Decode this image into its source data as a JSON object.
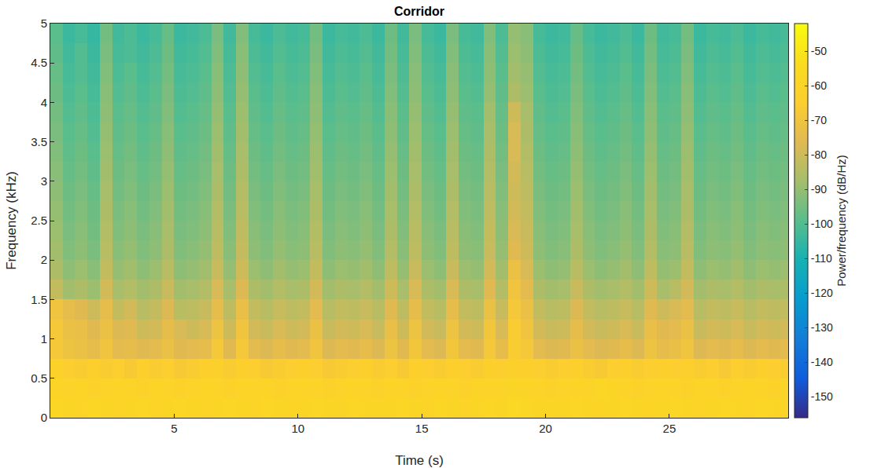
{
  "chart_data": {
    "type": "heatmap",
    "title": "Corridor",
    "x_label": "Time (s)",
    "y_label": "Frequency (kHz)",
    "xlim": [
      0,
      29.8
    ],
    "ylim": [
      0,
      5
    ],
    "xticks": [
      5,
      10,
      15,
      20,
      25
    ],
    "yticks": [
      0,
      0.5,
      1,
      1.5,
      2,
      2.5,
      3,
      3.5,
      4,
      4.5,
      5
    ],
    "colorbar": {
      "title": "Power/frequency (dB/Hz)",
      "range": [
        -156,
        -42
      ],
      "ticks": [
        -50,
        -60,
        -70,
        -80,
        -90,
        -100,
        -110,
        -120,
        -130,
        -140,
        -150
      ]
    },
    "x": [
      0.25,
      0.75,
      1.25,
      1.75,
      2.25,
      2.75,
      3.25,
      3.75,
      4.25,
      4.75,
      5.25,
      5.75,
      6.25,
      6.75,
      7.25,
      7.75,
      8.25,
      8.75,
      9.25,
      9.75,
      10.25,
      10.75,
      11.25,
      11.75,
      12.25,
      12.75,
      13.25,
      13.75,
      14.25,
      14.75,
      15.25,
      15.75,
      16.25,
      16.75,
      17.25,
      17.75,
      18.25,
      18.75,
      19.25,
      19.75,
      20.25,
      20.75,
      21.25,
      21.75,
      22.25,
      22.75,
      23.25,
      23.75,
      24.25,
      24.75,
      25.25,
      25.75,
      26.25,
      26.75,
      27.25,
      27.75,
      28.25,
      28.75,
      29.25,
      29.75
    ],
    "y": [
      0.125,
      0.375,
      0.625,
      0.875,
      1.125,
      1.375,
      1.625,
      1.875,
      2.125,
      2.375,
      2.625,
      2.875,
      3.125,
      3.375,
      3.625,
      3.875,
      4.125,
      4.375,
      4.625,
      4.875
    ],
    "z": [
      [
        -58,
        -59,
        -60,
        -58,
        -59,
        -60,
        -59,
        -58,
        -60,
        -59,
        -58,
        -59,
        -60,
        -59,
        -58,
        -59,
        -60,
        -58,
        -59,
        -60,
        -59,
        -58,
        -59,
        -60,
        -58,
        -59,
        -60,
        -59,
        -58,
        -59,
        -60,
        -58,
        -59,
        -60,
        -59,
        -58,
        -59,
        -57,
        -58,
        -59,
        -60,
        -59,
        -58,
        -59,
        -60,
        -59,
        -58,
        -59,
        -60,
        -59,
        -58,
        -59,
        -60,
        -59,
        -58,
        -59,
        -60,
        -58,
        -59,
        -60
      ],
      [
        -60,
        -61,
        -60,
        -62,
        -61,
        -60,
        -61,
        -62,
        -60,
        -61,
        -62,
        -61,
        -60,
        -61,
        -62,
        -60,
        -61,
        -60,
        -62,
        -61,
        -60,
        -61,
        -62,
        -61,
        -60,
        -61,
        -62,
        -60,
        -61,
        -62,
        -61,
        -60,
        -61,
        -62,
        -60,
        -61,
        -60,
        -59,
        -60,
        -61,
        -62,
        -61,
        -60,
        -61,
        -58,
        -60,
        -61,
        -62,
        -61,
        -60,
        -61,
        -62,
        -60,
        -61,
        -62,
        -61,
        -60,
        -61,
        -62,
        -61
      ],
      [
        -62,
        -65,
        -66,
        -64,
        -66,
        -65,
        -67,
        -64,
        -66,
        -65,
        -67,
        -66,
        -64,
        -63,
        -66,
        -64,
        -65,
        -67,
        -66,
        -65,
        -64,
        -65,
        -67,
        -66,
        -65,
        -64,
        -66,
        -65,
        -67,
        -64,
        -65,
        -66,
        -64,
        -65,
        -66,
        -63,
        -65,
        -63,
        -64,
        -65,
        -66,
        -65,
        -64,
        -66,
        -67,
        -65,
        -64,
        -66,
        -65,
        -64,
        -65,
        -64,
        -66,
        -65,
        -67,
        -65,
        -66,
        -64,
        -65,
        -66
      ],
      [
        -68,
        -71,
        -72,
        -74,
        -70,
        -75,
        -74,
        -76,
        -75,
        -72,
        -76,
        -75,
        -74,
        -68,
        -76,
        -68,
        -75,
        -77,
        -74,
        -76,
        -75,
        -70,
        -77,
        -75,
        -76,
        -74,
        -77,
        -71,
        -76,
        -69,
        -75,
        -77,
        -69,
        -75,
        -76,
        -68,
        -74,
        -66,
        -68,
        -75,
        -77,
        -76,
        -72,
        -75,
        -77,
        -76,
        -74,
        -77,
        -71,
        -74,
        -73,
        -70,
        -77,
        -75,
        -76,
        -74,
        -77,
        -75,
        -76,
        -75
      ],
      [
        -68,
        -72,
        -73,
        -76,
        -72,
        -77,
        -76,
        -80,
        -79,
        -74,
        -78,
        -80,
        -78,
        -71,
        -80,
        -70,
        -79,
        -81,
        -78,
        -80,
        -79,
        -72,
        -81,
        -79,
        -80,
        -78,
        -81,
        -73,
        -80,
        -71,
        -79,
        -81,
        -71,
        -79,
        -80,
        -69,
        -78,
        -66,
        -70,
        -79,
        -81,
        -80,
        -74,
        -79,
        -81,
        -80,
        -78,
        -81,
        -73,
        -76,
        -75,
        -72,
        -81,
        -79,
        -80,
        -78,
        -81,
        -79,
        -80,
        -79
      ],
      [
        -70,
        -74,
        -76,
        -80,
        -74,
        -82,
        -79,
        -84,
        -82,
        -77,
        -84,
        -83,
        -81,
        -74,
        -83,
        -73,
        -82,
        -84,
        -81,
        -83,
        -82,
        -75,
        -84,
        -82,
        -83,
        -81,
        -84,
        -76,
        -83,
        -74,
        -82,
        -84,
        -74,
        -82,
        -83,
        -72,
        -81,
        -68,
        -72,
        -82,
        -84,
        -83,
        -77,
        -82,
        -84,
        -83,
        -81,
        -84,
        -76,
        -80,
        -78,
        -75,
        -84,
        -82,
        -83,
        -81,
        -84,
        -82,
        -83,
        -82
      ],
      [
        -82,
        -88,
        -86,
        -89,
        -79,
        -87,
        -85,
        -88,
        -86,
        -81,
        -88,
        -87,
        -85,
        -78,
        -87,
        -77,
        -86,
        -88,
        -85,
        -87,
        -86,
        -79,
        -88,
        -86,
        -87,
        -85,
        -88,
        -80,
        -87,
        -78,
        -86,
        -88,
        -78,
        -86,
        -87,
        -76,
        -85,
        -70,
        -75,
        -86,
        -88,
        -87,
        -81,
        -86,
        -88,
        -87,
        -85,
        -88,
        -80,
        -87,
        -84,
        -79,
        -88,
        -86,
        -87,
        -85,
        -88,
        -86,
        -87,
        -86
      ],
      [
        -86,
        -91,
        -89,
        -92,
        -82,
        -90,
        -88,
        -91,
        -89,
        -84,
        -91,
        -90,
        -88,
        -81,
        -90,
        -80,
        -89,
        -91,
        -88,
        -90,
        -89,
        -82,
        -91,
        -89,
        -90,
        -88,
        -91,
        -83,
        -90,
        -81,
        -89,
        -91,
        -81,
        -89,
        -90,
        -79,
        -88,
        -72,
        -78,
        -89,
        -91,
        -90,
        -84,
        -89,
        -91,
        -90,
        -88,
        -91,
        -83,
        -90,
        -89,
        -82,
        -91,
        -89,
        -90,
        -88,
        -91,
        -89,
        -90,
        -89
      ],
      [
        -88,
        -93,
        -91,
        -94,
        -84,
        -92,
        -90,
        -93,
        -91,
        -86,
        -93,
        -92,
        -90,
        -83,
        -92,
        -82,
        -91,
        -93,
        -90,
        -92,
        -91,
        -84,
        -93,
        -91,
        -92,
        -90,
        -93,
        -85,
        -92,
        -83,
        -91,
        -93,
        -83,
        -91,
        -92,
        -81,
        -90,
        -76,
        -80,
        -91,
        -93,
        -92,
        -86,
        -91,
        -93,
        -92,
        -90,
        -93,
        -85,
        -92,
        -91,
        -84,
        -93,
        -91,
        -92,
        -90,
        -93,
        -91,
        -92,
        -91
      ],
      [
        -89,
        -94,
        -92,
        -95,
        -85,
        -93,
        -91,
        -94,
        -92,
        -87,
        -94,
        -93,
        -91,
        -84,
        -93,
        -83,
        -92,
        -94,
        -91,
        -93,
        -92,
        -85,
        -94,
        -92,
        -93,
        -91,
        -94,
        -86,
        -93,
        -84,
        -92,
        -94,
        -84,
        -92,
        -93,
        -82,
        -91,
        -78,
        -81,
        -92,
        -94,
        -93,
        -87,
        -92,
        -94,
        -93,
        -91,
        -94,
        -86,
        -93,
        -92,
        -85,
        -94,
        -92,
        -93,
        -91,
        -94,
        -92,
        -93,
        -92
      ],
      [
        -90,
        -95,
        -93,
        -96,
        -86,
        -94,
        -92,
        -95,
        -93,
        -88,
        -95,
        -94,
        -92,
        -85,
        -94,
        -84,
        -93,
        -95,
        -92,
        -94,
        -93,
        -86,
        -95,
        -93,
        -94,
        -92,
        -95,
        -87,
        -94,
        -85,
        -93,
        -95,
        -85,
        -93,
        -94,
        -83,
        -92,
        -79,
        -82,
        -93,
        -95,
        -94,
        -88,
        -93,
        -95,
        -94,
        -92,
        -95,
        -87,
        -94,
        -93,
        -86,
        -95,
        -93,
        -94,
        -92,
        -95,
        -93,
        -94,
        -93
      ],
      [
        -91,
        -96,
        -94,
        -97,
        -87,
        -95,
        -93,
        -96,
        -94,
        -89,
        -96,
        -95,
        -93,
        -86,
        -95,
        -85,
        -94,
        -96,
        -93,
        -95,
        -94,
        -87,
        -96,
        -94,
        -95,
        -93,
        -96,
        -88,
        -95,
        -86,
        -94,
        -96,
        -86,
        -94,
        -95,
        -84,
        -93,
        -80,
        -83,
        -94,
        -96,
        -95,
        -89,
        -94,
        -96,
        -95,
        -93,
        -96,
        -88,
        -95,
        -94,
        -87,
        -96,
        -94,
        -95,
        -93,
        -96,
        -94,
        -95,
        -94
      ],
      [
        -92,
        -97,
        -95,
        -98,
        -88,
        -96,
        -94,
        -97,
        -95,
        -90,
        -97,
        -96,
        -94,
        -87,
        -96,
        -86,
        -95,
        -97,
        -94,
        -96,
        -95,
        -88,
        -97,
        -95,
        -96,
        -94,
        -97,
        -89,
        -96,
        -87,
        -95,
        -97,
        -87,
        -95,
        -96,
        -85,
        -94,
        -79,
        -84,
        -95,
        -97,
        -96,
        -90,
        -95,
        -97,
        -96,
        -94,
        -97,
        -89,
        -96,
        -95,
        -88,
        -97,
        -95,
        -96,
        -94,
        -97,
        -95,
        -96,
        -95
      ],
      [
        -93,
        -98,
        -96,
        -99,
        -89,
        -97,
        -95,
        -98,
        -96,
        -91,
        -98,
        -97,
        -95,
        -88,
        -97,
        -87,
        -96,
        -98,
        -95,
        -97,
        -96,
        -89,
        -98,
        -96,
        -97,
        -95,
        -98,
        -90,
        -97,
        -88,
        -96,
        -98,
        -88,
        -96,
        -97,
        -86,
        -95,
        -78,
        -85,
        -96,
        -98,
        -97,
        -91,
        -96,
        -98,
        -97,
        -95,
        -98,
        -90,
        -97,
        -96,
        -89,
        -98,
        -96,
        -97,
        -95,
        -98,
        -96,
        -97,
        -96
      ],
      [
        -94,
        -99,
        -97,
        -100,
        -90,
        -98,
        -96,
        -99,
        -97,
        -92,
        -99,
        -98,
        -96,
        -89,
        -98,
        -88,
        -97,
        -99,
        -96,
        -98,
        -97,
        -90,
        -99,
        -97,
        -98,
        -96,
        -99,
        -91,
        -98,
        -89,
        -97,
        -99,
        -89,
        -97,
        -98,
        -87,
        -96,
        -78,
        -86,
        -97,
        -99,
        -98,
        -92,
        -97,
        -99,
        -98,
        -96,
        -99,
        -91,
        -98,
        -97,
        -90,
        -99,
        -97,
        -98,
        -96,
        -99,
        -97,
        -98,
        -97
      ],
      [
        -95,
        -100,
        -98,
        -101,
        -91,
        -99,
        -97,
        -100,
        -98,
        -93,
        -100,
        -99,
        -97,
        -90,
        -99,
        -89,
        -98,
        -100,
        -97,
        -99,
        -98,
        -91,
        -100,
        -98,
        -99,
        -97,
        -100,
        -92,
        -99,
        -90,
        -98,
        -100,
        -90,
        -98,
        -99,
        -88,
        -97,
        -80,
        -87,
        -98,
        -100,
        -99,
        -93,
        -98,
        -100,
        -99,
        -97,
        -100,
        -92,
        -99,
        -98,
        -91,
        -100,
        -98,
        -99,
        -97,
        -100,
        -98,
        -99,
        -98
      ],
      [
        -96,
        -101,
        -99,
        -102,
        -92,
        -100,
        -98,
        -101,
        -99,
        -94,
        -101,
        -100,
        -98,
        -91,
        -100,
        -90,
        -99,
        -101,
        -98,
        -100,
        -99,
        -92,
        -101,
        -99,
        -100,
        -98,
        -101,
        -93,
        -100,
        -91,
        -99,
        -101,
        -91,
        -99,
        -100,
        -90,
        -98,
        -86,
        -89,
        -99,
        -101,
        -100,
        -94,
        -99,
        -101,
        -100,
        -98,
        -101,
        -93,
        -100,
        -99,
        -92,
        -101,
        -99,
        -100,
        -98,
        -101,
        -99,
        -100,
        -99
      ],
      [
        -97,
        -102,
        -100,
        -103,
        -93,
        -101,
        -99,
        -102,
        -100,
        -95,
        -102,
        -101,
        -99,
        -92,
        -101,
        -91,
        -100,
        -102,
        -99,
        -101,
        -100,
        -93,
        -102,
        -100,
        -101,
        -99,
        -102,
        -94,
        -101,
        -92,
        -100,
        -102,
        -92,
        -100,
        -101,
        -91,
        -99,
        -88,
        -90,
        -100,
        -102,
        -101,
        -95,
        -100,
        -102,
        -101,
        -99,
        -102,
        -94,
        -101,
        -100,
        -93,
        -102,
        -100,
        -101,
        -99,
        -102,
        -100,
        -101,
        -100
      ],
      [
        -98,
        -103,
        -100,
        -104,
        -94,
        -102,
        -101,
        -103,
        -101,
        -96,
        -103,
        -102,
        -100,
        -93,
        -102,
        -92,
        -101,
        -103,
        -100,
        -102,
        -101,
        -94,
        -103,
        -101,
        -102,
        -100,
        -103,
        -95,
        -102,
        -93,
        -101,
        -103,
        -93,
        -101,
        -102,
        -92,
        -100,
        -89,
        -91,
        -101,
        -103,
        -102,
        -96,
        -101,
        -103,
        -102,
        -100,
        -103,
        -95,
        -102,
        -101,
        -94,
        -103,
        -101,
        -102,
        -100,
        -103,
        -101,
        -102,
        -101
      ],
      [
        -99,
        -104,
        -102,
        -105,
        -95,
        -103,
        -101,
        -104,
        -102,
        -97,
        -104,
        -103,
        -101,
        -94,
        -103,
        -93,
        -102,
        -104,
        -101,
        -103,
        -102,
        -95,
        -104,
        -102,
        -103,
        -101,
        -104,
        -96,
        -103,
        -94,
        -102,
        -104,
        -94,
        -102,
        -103,
        -93,
        -101,
        -90,
        -92,
        -102,
        -104,
        -103,
        -97,
        -102,
        -104,
        -103,
        -101,
        -104,
        -96,
        -103,
        -102,
        -95,
        -104,
        -102,
        -103,
        -101,
        -104,
        -102,
        -103,
        -102
      ]
    ]
  }
}
